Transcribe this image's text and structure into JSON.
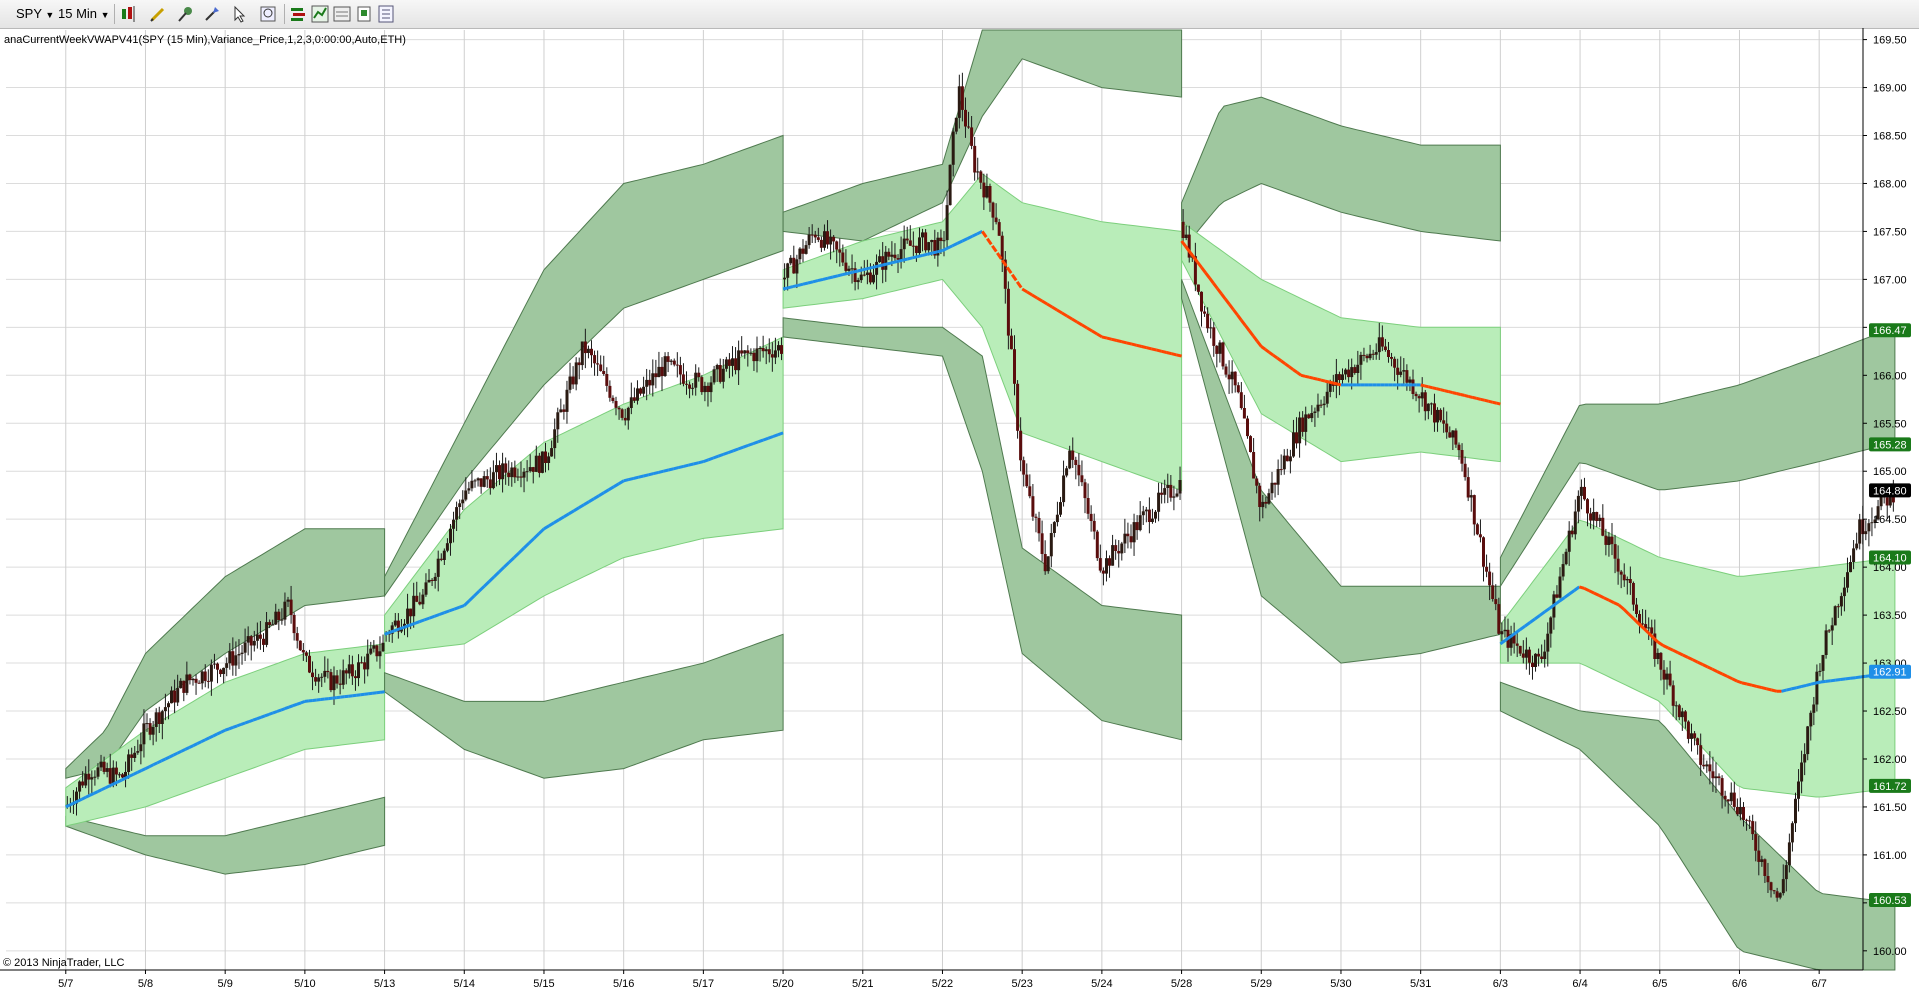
{
  "toolbar": {
    "instrument": "SPY",
    "interval": "15 Min"
  },
  "indicator_label": "anaCurrentWeekVWAPV41(SPY (15 Min),Variance_Price,1,2,3,0:00:00,Auto,ETH)",
  "copyright": "© 2013 NinjaTrader, LLC",
  "colors": {
    "inner_band": "#b9edb9",
    "outer_band": "#9fc79f",
    "outer_band_stroke": "#4f7a4f",
    "vwap_up": "#1e8fe8",
    "vwap_down": "#ff4500",
    "candle_up": "#2a1a12",
    "candle_down": "#5a0d0d",
    "grid": "#dcdcdc"
  },
  "chart_data": {
    "type": "candlestick",
    "title": "",
    "y_range": [
      159.8,
      169.6
    ],
    "y_ticks": [
      "169.50",
      "169.00",
      "168.50",
      "168.00",
      "167.50",
      "167.00",
      "166.50",
      "166.00",
      "165.50",
      "165.00",
      "164.50",
      "164.00",
      "163.50",
      "163.00",
      "162.50",
      "162.00",
      "161.50",
      "161.00",
      "160.50",
      "160.00"
    ],
    "x_labels": [
      "5/7",
      "5/8",
      "5/9",
      "5/10",
      "5/13",
      "5/14",
      "5/15",
      "5/16",
      "5/17",
      "5/20",
      "5/21",
      "5/22",
      "5/23",
      "5/24",
      "5/28",
      "5/29",
      "5/30",
      "5/31",
      "6/3",
      "6/4",
      "6/5",
      "6/6",
      "6/7"
    ],
    "price_markers": [
      {
        "value": "166.47",
        "bg": "#1a7a1a"
      },
      {
        "value": "165.28",
        "bg": "#1a7a1a"
      },
      {
        "value": "164.80",
        "bg": "#000000"
      },
      {
        "value": "164.10",
        "bg": "#1a7a1a"
      },
      {
        "value": "162.91",
        "bg": "#1e8fe8"
      },
      {
        "value": "161.72",
        "bg": "#1a7a1a"
      },
      {
        "value": "160.53",
        "bg": "#1a7a1a"
      }
    ],
    "weeks": [
      {
        "days": [
          0,
          4
        ],
        "vwap": [
          [
            0,
            161.5
          ],
          [
            1,
            161.9
          ],
          [
            2,
            162.3
          ],
          [
            3,
            162.6
          ],
          [
            4,
            162.7
          ]
        ],
        "vwap_color": "up",
        "inner_up": [
          [
            0,
            161.7
          ],
          [
            1,
            162.3
          ],
          [
            2,
            162.8
          ],
          [
            3,
            163.1
          ],
          [
            4,
            163.2
          ]
        ],
        "inner_dn": [
          [
            0,
            161.3
          ],
          [
            1,
            161.5
          ],
          [
            2,
            161.8
          ],
          [
            3,
            162.1
          ],
          [
            4,
            162.2
          ]
        ],
        "outer_up_hi": [
          [
            0,
            161.9
          ],
          [
            0.5,
            162.3
          ],
          [
            1,
            163.1
          ],
          [
            2,
            163.9
          ],
          [
            3,
            164.4
          ],
          [
            4,
            164.4
          ]
        ],
        "outer_up_lo": [
          [
            0,
            161.8
          ],
          [
            0.5,
            161.9
          ],
          [
            1,
            162.5
          ],
          [
            2,
            163.1
          ],
          [
            3,
            163.6
          ],
          [
            4,
            163.7
          ]
        ],
        "outer_dn_hi": [
          [
            0,
            161.4
          ],
          [
            1,
            161.2
          ],
          [
            2,
            161.2
          ],
          [
            3,
            161.4
          ],
          [
            4,
            161.6
          ]
        ],
        "outer_dn_lo": [
          [
            0,
            161.3
          ],
          [
            1,
            161.0
          ],
          [
            2,
            160.8
          ],
          [
            3,
            160.9
          ],
          [
            4,
            161.1
          ]
        ],
        "price": [
          [
            0,
            161.5
          ],
          [
            0.3,
            161.9
          ],
          [
            0.7,
            161.8
          ],
          [
            1,
            162.3
          ],
          [
            1.5,
            162.8
          ],
          [
            2,
            163.0
          ],
          [
            2.5,
            163.3
          ],
          [
            2.8,
            163.6
          ],
          [
            3,
            163.0
          ],
          [
            3.3,
            162.8
          ],
          [
            3.6,
            162.9
          ],
          [
            4,
            163.2
          ]
        ]
      },
      {
        "days": [
          4,
          9
        ],
        "vwap": [
          [
            4,
            163.3
          ],
          [
            5,
            163.6
          ],
          [
            6,
            164.4
          ],
          [
            7,
            164.9
          ],
          [
            8,
            165.1
          ],
          [
            9,
            165.4
          ]
        ],
        "vwap_color": "up",
        "inner_up": [
          [
            4,
            163.5
          ],
          [
            5,
            164.6
          ],
          [
            6,
            165.3
          ],
          [
            7,
            165.7
          ],
          [
            8,
            166.0
          ],
          [
            9,
            166.4
          ]
        ],
        "inner_dn": [
          [
            4,
            163.1
          ],
          [
            5,
            163.2
          ],
          [
            6,
            163.7
          ],
          [
            7,
            164.1
          ],
          [
            8,
            164.3
          ],
          [
            9,
            164.4
          ]
        ],
        "outer_up_hi": [
          [
            4,
            163.9
          ],
          [
            5,
            165.5
          ],
          [
            6,
            167.1
          ],
          [
            7,
            168.0
          ],
          [
            8,
            168.2
          ],
          [
            9,
            168.5
          ]
        ],
        "outer_up_lo": [
          [
            4,
            163.7
          ],
          [
            5,
            164.9
          ],
          [
            6,
            165.9
          ],
          [
            7,
            166.7
          ],
          [
            8,
            167.0
          ],
          [
            9,
            167.3
          ]
        ],
        "outer_dn_hi": [
          [
            4,
            162.9
          ],
          [
            5,
            162.6
          ],
          [
            6,
            162.6
          ],
          [
            7,
            162.8
          ],
          [
            8,
            163.0
          ],
          [
            9,
            163.3
          ]
        ],
        "outer_dn_lo": [
          [
            4,
            162.7
          ],
          [
            5,
            162.1
          ],
          [
            6,
            161.8
          ],
          [
            7,
            161.9
          ],
          [
            8,
            162.2
          ],
          [
            9,
            162.3
          ]
        ],
        "price": [
          [
            4,
            163.3
          ],
          [
            4.5,
            163.7
          ],
          [
            5,
            164.8
          ],
          [
            5.5,
            165.0
          ],
          [
            6,
            165.1
          ],
          [
            6.5,
            166.3
          ],
          [
            7,
            165.6
          ],
          [
            7.5,
            166.1
          ],
          [
            8,
            165.9
          ],
          [
            8.5,
            166.2
          ],
          [
            9,
            166.3
          ]
        ]
      },
      {
        "days": [
          9,
          14
        ],
        "vwap": [
          [
            9,
            166.9
          ],
          [
            10,
            167.1
          ],
          [
            10.5,
            167.2
          ],
          [
            11,
            167.3
          ],
          [
            11.5,
            167.5
          ],
          [
            12,
            166.9
          ],
          [
            13,
            166.4
          ],
          [
            14,
            166.2
          ]
        ],
        "vwap_color": "mixed",
        "inner_up": [
          [
            9,
            167.1
          ],
          [
            10,
            167.4
          ],
          [
            11,
            167.6
          ],
          [
            11.5,
            168.1
          ],
          [
            12,
            167.8
          ],
          [
            13,
            167.6
          ],
          [
            14,
            167.5
          ]
        ],
        "inner_dn": [
          [
            9,
            166.7
          ],
          [
            10,
            166.8
          ],
          [
            11,
            167.0
          ],
          [
            11.5,
            166.5
          ],
          [
            12,
            165.4
          ],
          [
            13,
            165.1
          ],
          [
            14,
            164.8
          ]
        ],
        "outer_up_hi": [
          [
            9,
            167.7
          ],
          [
            10,
            168.0
          ],
          [
            11,
            168.2
          ],
          [
            11.5,
            169.6
          ],
          [
            12,
            169.6
          ],
          [
            14,
            169.6
          ]
        ],
        "outer_up_lo": [
          [
            9,
            167.5
          ],
          [
            10,
            167.4
          ],
          [
            11,
            167.8
          ],
          [
            11.5,
            168.7
          ],
          [
            12,
            169.3
          ],
          [
            13,
            169.0
          ],
          [
            14,
            168.9
          ]
        ],
        "outer_dn_hi": [
          [
            9,
            166.6
          ],
          [
            10,
            166.5
          ],
          [
            11,
            166.5
          ],
          [
            11.5,
            166.2
          ],
          [
            12,
            164.2
          ],
          [
            13,
            163.6
          ],
          [
            14,
            163.5
          ]
        ],
        "outer_dn_lo": [
          [
            9,
            166.4
          ],
          [
            10,
            166.3
          ],
          [
            11,
            166.2
          ],
          [
            11.5,
            165.0
          ],
          [
            12,
            163.1
          ],
          [
            13,
            162.4
          ],
          [
            14,
            162.2
          ]
        ],
        "price": [
          [
            9,
            167.0
          ],
          [
            9.4,
            167.5
          ],
          [
            10,
            167.0
          ],
          [
            10.4,
            167.3
          ],
          [
            10.8,
            167.4
          ],
          [
            11,
            167.3
          ],
          [
            11.2,
            169.0
          ],
          [
            11.4,
            168.2
          ],
          [
            11.7,
            167.6
          ],
          [
            12,
            165.0
          ],
          [
            12.3,
            164.0
          ],
          [
            12.6,
            165.3
          ],
          [
            13,
            164.0
          ],
          [
            13.5,
            164.5
          ],
          [
            14,
            164.9
          ]
        ]
      },
      {
        "days": [
          14,
          18
        ],
        "vwap": [
          [
            14,
            167.4
          ],
          [
            15,
            166.3
          ],
          [
            15.5,
            166.0
          ],
          [
            16,
            165.9
          ],
          [
            17,
            165.9
          ],
          [
            18,
            165.7
          ]
        ],
        "vwap_color": "mixed",
        "inner_up": [
          [
            14,
            167.6
          ],
          [
            15,
            167.0
          ],
          [
            16,
            166.6
          ],
          [
            17,
            166.5
          ],
          [
            18,
            166.5
          ]
        ],
        "inner_dn": [
          [
            14,
            167.2
          ],
          [
            15,
            165.6
          ],
          [
            16,
            165.1
          ],
          [
            17,
            165.2
          ],
          [
            18,
            165.1
          ]
        ],
        "outer_up_hi": [
          [
            14,
            167.8
          ],
          [
            14.5,
            168.8
          ],
          [
            15,
            168.9
          ],
          [
            16,
            168.6
          ],
          [
            17,
            168.4
          ],
          [
            18,
            168.4
          ]
        ],
        "outer_up_lo": [
          [
            14,
            167.3
          ],
          [
            14.5,
            167.8
          ],
          [
            15,
            168.0
          ],
          [
            16,
            167.7
          ],
          [
            17,
            167.5
          ],
          [
            18,
            167.4
          ]
        ],
        "outer_dn_hi": [
          [
            14,
            167.0
          ],
          [
            15,
            164.8
          ],
          [
            16,
            163.8
          ],
          [
            17,
            163.8
          ],
          [
            18,
            163.8
          ]
        ],
        "outer_dn_lo": [
          [
            14,
            166.8
          ],
          [
            15,
            163.7
          ],
          [
            16,
            163.0
          ],
          [
            17,
            163.1
          ],
          [
            18,
            163.3
          ]
        ],
        "price": [
          [
            14,
            167.6
          ],
          [
            14.3,
            166.6
          ],
          [
            14.7,
            165.8
          ],
          [
            15,
            164.6
          ],
          [
            15.5,
            165.5
          ],
          [
            16,
            166.0
          ],
          [
            16.5,
            166.3
          ],
          [
            17,
            165.8
          ],
          [
            17.5,
            165.2
          ],
          [
            18,
            163.3
          ]
        ]
      },
      {
        "days": [
          18,
          22.95
        ],
        "vwap": [
          [
            18,
            163.2
          ],
          [
            19,
            163.8
          ],
          [
            19.5,
            163.6
          ],
          [
            20,
            163.2
          ],
          [
            21,
            162.8
          ],
          [
            21.5,
            162.7
          ],
          [
            22,
            162.8
          ],
          [
            22.95,
            162.9
          ]
        ],
        "vwap_color": "mixed",
        "inner_up": [
          [
            18,
            163.4
          ],
          [
            19,
            164.5
          ],
          [
            20,
            164.1
          ],
          [
            21,
            163.9
          ],
          [
            22,
            164.0
          ],
          [
            22.95,
            164.1
          ]
        ],
        "inner_dn": [
          [
            18,
            163.0
          ],
          [
            19,
            163.0
          ],
          [
            20,
            162.6
          ],
          [
            21,
            161.7
          ],
          [
            22,
            161.6
          ],
          [
            22.95,
            161.7
          ]
        ],
        "outer_up_hi": [
          [
            18,
            164.1
          ],
          [
            19,
            165.7
          ],
          [
            20,
            165.7
          ],
          [
            21,
            165.9
          ],
          [
            22,
            166.2
          ],
          [
            22.95,
            166.5
          ]
        ],
        "outer_up_lo": [
          [
            18,
            163.8
          ],
          [
            19,
            165.1
          ],
          [
            20,
            164.8
          ],
          [
            21,
            164.9
          ],
          [
            22,
            165.1
          ],
          [
            22.95,
            165.3
          ]
        ],
        "outer_dn_hi": [
          [
            18,
            162.8
          ],
          [
            19,
            162.5
          ],
          [
            20,
            162.4
          ],
          [
            21,
            161.4
          ],
          [
            22,
            160.6
          ],
          [
            22.95,
            160.5
          ]
        ],
        "outer_dn_lo": [
          [
            18,
            162.5
          ],
          [
            19,
            162.1
          ],
          [
            20,
            161.3
          ],
          [
            21,
            160.0
          ],
          [
            22,
            159.8
          ],
          [
            22.95,
            159.8
          ]
        ],
        "price": [
          [
            18,
            163.3
          ],
          [
            18.5,
            163.0
          ],
          [
            19,
            164.8
          ],
          [
            19.5,
            164.0
          ],
          [
            20,
            163.0
          ],
          [
            20.5,
            162.0
          ],
          [
            21,
            161.5
          ],
          [
            21.5,
            160.5
          ],
          [
            22,
            163.0
          ],
          [
            22.5,
            164.4
          ],
          [
            22.95,
            164.8
          ]
        ]
      }
    ]
  }
}
